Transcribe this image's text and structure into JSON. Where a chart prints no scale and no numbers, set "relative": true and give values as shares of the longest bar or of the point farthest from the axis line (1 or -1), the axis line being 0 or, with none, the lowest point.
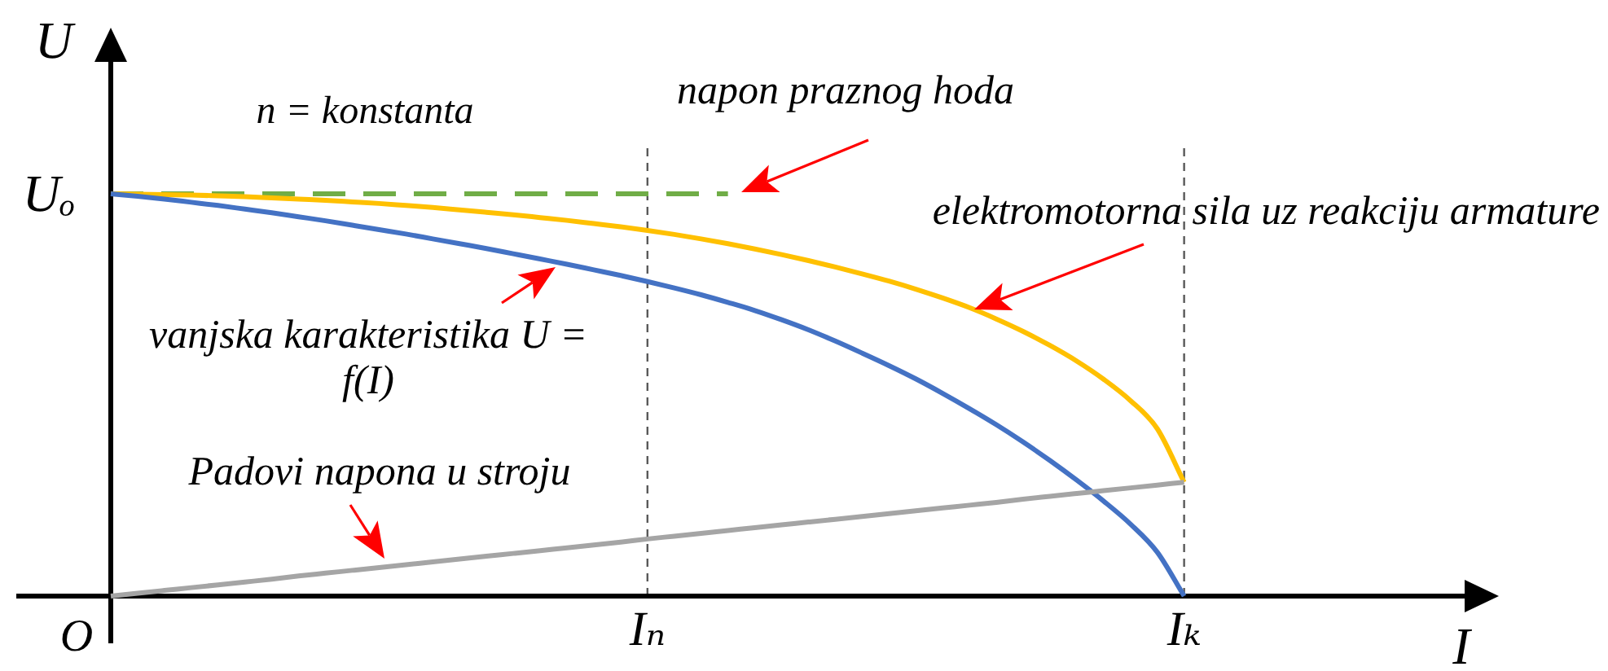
{
  "chart_data": {
    "type": "line",
    "relative": true,
    "xlabel": "I",
    "ylabel": "U",
    "grid": "x",
    "categories": [
      null,
      null,
      null,
      null,
      null,
      null,
      null,
      null,
      null,
      null,
      null,
      null,
      null,
      null,
      null,
      null,
      null,
      null,
      null,
      null,
      "Iₙ",
      null,
      null,
      null,
      null,
      null,
      null,
      null,
      null,
      null,
      null,
      null,
      null,
      null,
      null,
      null,
      null,
      null,
      null,
      null,
      "Iₖ",
      null,
      null,
      null,
      null,
      null,
      null,
      null,
      null,
      null,
      null,
      null
    ],
    "series": [
      {
        "name": "napon praznog hoda",
        "color": "#70ad47",
        "line_style": "dashed",
        "values": [
          1,
          1,
          1,
          1,
          1,
          1,
          1,
          1,
          1,
          1,
          1,
          1,
          1,
          1,
          1,
          1,
          1,
          1,
          1,
          1,
          1,
          1,
          1,
          1,
          null,
          null,
          null,
          null,
          null,
          null,
          null,
          null,
          null,
          null,
          null,
          null,
          null,
          null,
          null,
          null,
          null,
          null,
          null,
          null,
          null,
          null,
          null,
          null,
          null,
          null,
          null,
          null
        ]
      },
      {
        "name": "elektromotorna sila uz reakciju armature",
        "color": "#ffc000",
        "values": [
          1,
          0.999,
          0.998,
          0.997,
          0.995,
          0.993,
          0.99,
          0.987,
          0.984,
          0.98,
          0.976,
          0.971,
          0.966,
          0.96,
          0.954,
          0.948,
          0.941,
          0.934,
          0.926,
          0.918,
          0.909,
          0.899,
          0.888,
          0.876,
          0.863,
          0.849,
          0.834,
          0.818,
          0.801,
          0.783,
          0.763,
          0.741,
          0.717,
          0.689,
          0.658,
          0.623,
          0.584,
          0.539,
          0.486,
          0.416,
          0.283,
          null,
          null,
          null,
          null,
          null,
          null,
          null,
          null,
          null,
          null,
          null
        ]
      },
      {
        "name": "vanjska karakteristika U = f(I)",
        "color": "#4472c4",
        "values": [
          1,
          0.994,
          0.987,
          0.979,
          0.971,
          0.962,
          0.953,
          0.943,
          0.933,
          0.922,
          0.911,
          0.9,
          0.888,
          0.876,
          0.864,
          0.851,
          0.838,
          0.825,
          0.811,
          0.797,
          0.782,
          0.766,
          0.749,
          0.73,
          0.71,
          0.687,
          0.662,
          0.634,
          0.604,
          0.573,
          0.54,
          0.504,
          0.466,
          0.426,
          0.383,
          0.337,
          0.288,
          0.236,
          0.179,
          0.109,
          0,
          null,
          null,
          null,
          null,
          null,
          null,
          null,
          null,
          null,
          null,
          null
        ]
      },
      {
        "name": "Padovi napona u stroju",
        "color": "#a5a5a5",
        "values": [
          0,
          0.007,
          0.014,
          0.021,
          0.028,
          0.035,
          0.042,
          0.05,
          0.057,
          0.064,
          0.071,
          0.078,
          0.085,
          0.092,
          0.099,
          0.106,
          0.113,
          0.12,
          0.127,
          0.134,
          0.142,
          0.149,
          0.156,
          0.163,
          0.17,
          0.177,
          0.184,
          0.191,
          0.198,
          0.205,
          0.212,
          0.219,
          0.226,
          0.233,
          0.241,
          0.248,
          0.255,
          0.262,
          0.269,
          0.276,
          0.283,
          null,
          null,
          null,
          null,
          null,
          null,
          null,
          null,
          null,
          null,
          null
        ]
      }
    ],
    "annotations": [
      "n = konstanta",
      "Uₒ",
      "O"
    ]
  }
}
